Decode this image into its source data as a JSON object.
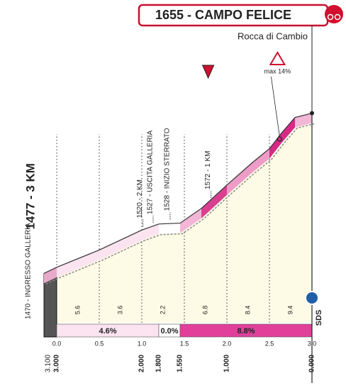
{
  "chart_data": {
    "type": "area",
    "title": "1655 - CAMPO FELICE",
    "subtitle": "Rocca di Cambio",
    "start_label": "1477 - 3 KM",
    "x": [
      -0.15,
      0,
      0.5,
      1.0,
      1.2,
      1.45,
      1.7,
      2.0,
      2.3,
      2.5,
      2.65,
      2.8,
      3.0
    ],
    "values": [
      1470,
      1477,
      1497,
      1520,
      1527,
      1528,
      1545,
      1572,
      1598,
      1614,
      1633,
      1650,
      1655
    ],
    "segment_colors": [
      "#e8a9cb",
      "#fbe3ef",
      "#fbe3ef",
      "#fbe3ef",
      "#ffffff",
      "#f2b6d6",
      "#d9408f",
      "#ec9cc6",
      "#ec9cc6",
      "#d62a86",
      "#d62a86",
      "#f2b6d6"
    ],
    "area_color": "#fdfbe6",
    "xlim": [
      -0.15,
      3.0
    ],
    "ylim": [
      1413,
      1680
    ],
    "xticks": [
      {
        "value": 0,
        "label": "0.0"
      },
      {
        "value": 0.5,
        "label": "0.5"
      },
      {
        "value": 1,
        "label": "1.0"
      },
      {
        "value": 1.5,
        "label": "1.5"
      },
      {
        "value": 2,
        "label": "2.0"
      },
      {
        "value": 2.5,
        "label": "2.5"
      },
      {
        "value": 3,
        "label": "3.0"
      }
    ],
    "remaining": [
      {
        "value": 3.1,
        "label": "3.100"
      },
      {
        "value": 3,
        "label": "3.000"
      },
      {
        "value": 2,
        "label": "2.000"
      },
      {
        "value": 1.8,
        "label": "1.800"
      },
      {
        "value": 1.55,
        "label": "1.550"
      },
      {
        "value": 1,
        "label": "1.000"
      },
      {
        "value": 0,
        "label": "0.000"
      }
    ],
    "annotations": [
      {
        "text": "1470 - INGRESSO GALLERIA",
        "x": -0.15
      },
      {
        "text": "1520 - 2 KM",
        "x": 0.98
      },
      {
        "text": "1527 - USCITA GALLERIA",
        "x": 1.1
      },
      {
        "text": "1528 - INIZIO STERRATO",
        "x": 1.3
      },
      {
        "text": "1572 - 1 KM",
        "x": 1.78
      }
    ],
    "gradient_labels": [
      5.6,
      3.6,
      2.2,
      6.8,
      8.4,
      9.4
    ],
    "gradient_bar": {
      "start": [
        0,
        1.2,
        1.45
      ],
      "end": [
        1.2,
        1.45,
        3.0
      ],
      "values": [
        4.6,
        0.0,
        8.8
      ],
      "value_labels": [
        "4.6%",
        "0.0%",
        "8.8%"
      ],
      "colors": [
        "#fbe3ef",
        "#ffffff",
        "#e0409a"
      ]
    },
    "max_gradient": {
      "value": 14,
      "value_label": "max 14%",
      "x": 2.62
    },
    "finish_mark": "SDS"
  }
}
